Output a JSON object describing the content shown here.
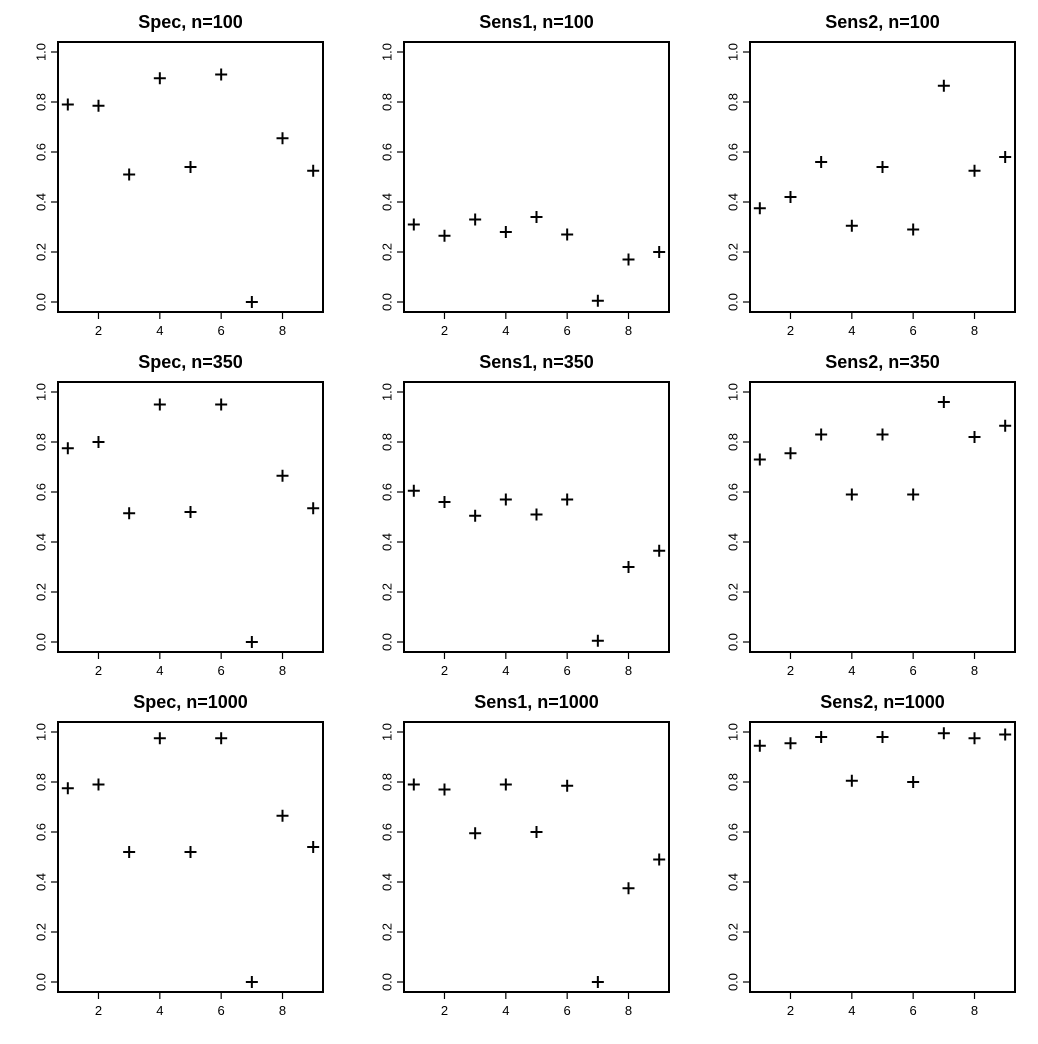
{
  "chart_data": [
    {
      "type": "scatter",
      "title": "Spec, n=100",
      "x": [
        1,
        2,
        3,
        4,
        5,
        6,
        7,
        8,
        9
      ],
      "y": [
        0.79,
        0.785,
        0.51,
        0.895,
        0.54,
        0.91,
        0.0,
        0.655,
        0.525
      ],
      "xlim": [
        1,
        9
      ],
      "ylim": [
        0,
        1
      ],
      "xticks": [
        "2",
        "4",
        "6",
        "8"
      ],
      "yticks": [
        "0.0",
        "0.2",
        "0.4",
        "0.6",
        "0.8",
        "1.0"
      ],
      "marker": "+",
      "grid": false
    },
    {
      "type": "scatter",
      "title": "Sens1, n=100",
      "x": [
        1,
        2,
        3,
        4,
        5,
        6,
        7,
        8,
        9
      ],
      "y": [
        0.31,
        0.265,
        0.33,
        0.28,
        0.34,
        0.27,
        0.005,
        0.17,
        0.2
      ],
      "xlim": [
        1,
        9
      ],
      "ylim": [
        0,
        1
      ],
      "xticks": [
        "2",
        "4",
        "6",
        "8"
      ],
      "yticks": [
        "0.0",
        "0.2",
        "0.4",
        "0.6",
        "0.8",
        "1.0"
      ],
      "marker": "+",
      "grid": false
    },
    {
      "type": "scatter",
      "title": "Sens2, n=100",
      "x": [
        1,
        2,
        3,
        4,
        5,
        6,
        7,
        8,
        9
      ],
      "y": [
        0.375,
        0.42,
        0.56,
        0.305,
        0.54,
        0.29,
        0.865,
        0.525,
        0.58
      ],
      "xlim": [
        1,
        9
      ],
      "ylim": [
        0,
        1
      ],
      "xticks": [
        "2",
        "4",
        "6",
        "8"
      ],
      "yticks": [
        "0.0",
        "0.2",
        "0.4",
        "0.6",
        "0.8",
        "1.0"
      ],
      "marker": "+",
      "grid": false
    },
    {
      "type": "scatter",
      "title": "Spec, n=350",
      "x": [
        1,
        2,
        3,
        4,
        5,
        6,
        7,
        8,
        9
      ],
      "y": [
        0.775,
        0.8,
        0.515,
        0.95,
        0.52,
        0.95,
        0.0,
        0.665,
        0.535
      ],
      "xlim": [
        1,
        9
      ],
      "ylim": [
        0,
        1
      ],
      "xticks": [
        "2",
        "4",
        "6",
        "8"
      ],
      "yticks": [
        "0.0",
        "0.2",
        "0.4",
        "0.6",
        "0.8",
        "1.0"
      ],
      "marker": "+",
      "grid": false
    },
    {
      "type": "scatter",
      "title": "Sens1, n=350",
      "x": [
        1,
        2,
        3,
        4,
        5,
        6,
        7,
        8,
        9
      ],
      "y": [
        0.605,
        0.56,
        0.505,
        0.57,
        0.51,
        0.57,
        0.005,
        0.3,
        0.365
      ],
      "xlim": [
        1,
        9
      ],
      "ylim": [
        0,
        1
      ],
      "xticks": [
        "2",
        "4",
        "6",
        "8"
      ],
      "yticks": [
        "0.0",
        "0.2",
        "0.4",
        "0.6",
        "0.8",
        "1.0"
      ],
      "marker": "+",
      "grid": false
    },
    {
      "type": "scatter",
      "title": "Sens2, n=350",
      "x": [
        1,
        2,
        3,
        4,
        5,
        6,
        7,
        8,
        9
      ],
      "y": [
        0.73,
        0.755,
        0.83,
        0.59,
        0.83,
        0.59,
        0.96,
        0.82,
        0.865
      ],
      "xlim": [
        1,
        9
      ],
      "ylim": [
        0,
        1
      ],
      "xticks": [
        "2",
        "4",
        "6",
        "8"
      ],
      "yticks": [
        "0.0",
        "0.2",
        "0.4",
        "0.6",
        "0.8",
        "1.0"
      ],
      "marker": "+",
      "grid": false
    },
    {
      "type": "scatter",
      "title": "Spec, n=1000",
      "x": [
        1,
        2,
        3,
        4,
        5,
        6,
        7,
        8,
        9
      ],
      "y": [
        0.775,
        0.79,
        0.52,
        0.975,
        0.52,
        0.975,
        0.0,
        0.665,
        0.54
      ],
      "xlim": [
        1,
        9
      ],
      "ylim": [
        0,
        1
      ],
      "xticks": [
        "2",
        "4",
        "6",
        "8"
      ],
      "yticks": [
        "0.0",
        "0.2",
        "0.4",
        "0.6",
        "0.8",
        "1.0"
      ],
      "marker": "+",
      "grid": false
    },
    {
      "type": "scatter",
      "title": "Sens1, n=1000",
      "x": [
        1,
        2,
        3,
        4,
        5,
        6,
        7,
        8,
        9
      ],
      "y": [
        0.79,
        0.77,
        0.595,
        0.79,
        0.6,
        0.785,
        0.0,
        0.375,
        0.49
      ],
      "xlim": [
        1,
        9
      ],
      "ylim": [
        0,
        1
      ],
      "xticks": [
        "2",
        "4",
        "6",
        "8"
      ],
      "yticks": [
        "0.0",
        "0.2",
        "0.4",
        "0.6",
        "0.8",
        "1.0"
      ],
      "marker": "+",
      "grid": false
    },
    {
      "type": "scatter",
      "title": "Sens2, n=1000",
      "x": [
        1,
        2,
        3,
        4,
        5,
        6,
        7,
        8,
        9
      ],
      "y": [
        0.945,
        0.955,
        0.98,
        0.805,
        0.98,
        0.8,
        0.995,
        0.975,
        0.99
      ],
      "xlim": [
        1,
        9
      ],
      "ylim": [
        0,
        1
      ],
      "xticks": [
        "2",
        "4",
        "6",
        "8"
      ],
      "yticks": [
        "0.0",
        "0.2",
        "0.4",
        "0.6",
        "0.8",
        "1.0"
      ],
      "marker": "+",
      "grid": false
    }
  ]
}
